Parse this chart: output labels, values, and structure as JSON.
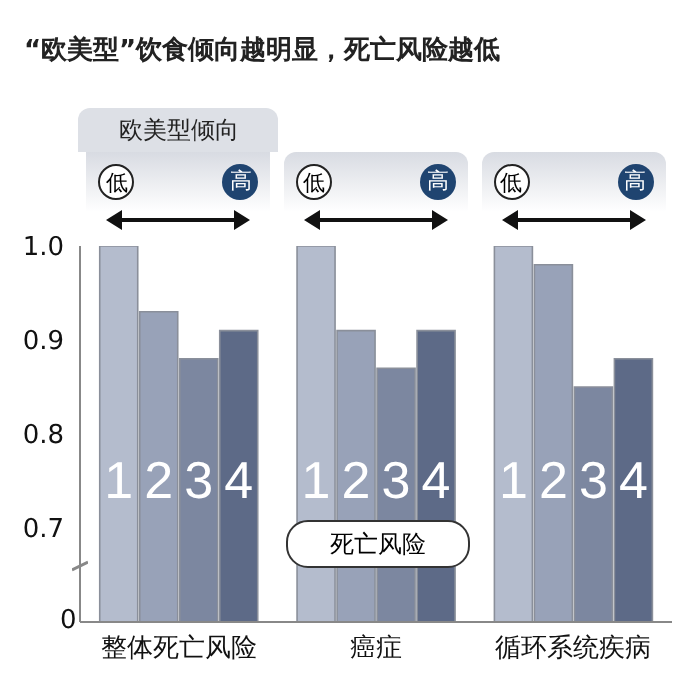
{
  "chart_data": {
    "type": "bar",
    "title": "“欧美型”饮食倾向越明显，死亡风险越低",
    "ylabel": "死亡风险",
    "categories": [
      "整体死亡风险",
      "癌症",
      "循环系统疾病"
    ],
    "series": [
      {
        "name": "1",
        "color": "#b4bccd",
        "values": [
          1.0,
          1.0,
          1.0
        ]
      },
      {
        "name": "2",
        "color": "#98a2b8",
        "values": [
          0.93,
          0.91,
          0.98
        ]
      },
      {
        "name": "3",
        "color": "#7c87a0",
        "values": [
          0.88,
          0.87,
          0.85
        ]
      },
      {
        "name": "4",
        "color": "#5d6a87",
        "values": [
          0.91,
          0.91,
          0.88
        ]
      }
    ],
    "ylim": [
      0.6,
      1.0
    ],
    "yticks": [
      0.7,
      0.8,
      0.9,
      {
        "value": 1.0,
        "label": "1.0"
      }
    ],
    "grid": false,
    "legend": false,
    "annotations": [
      "欧美型倾向",
      "低",
      "高",
      "低",
      "高",
      "低",
      "高",
      "0"
    ]
  }
}
